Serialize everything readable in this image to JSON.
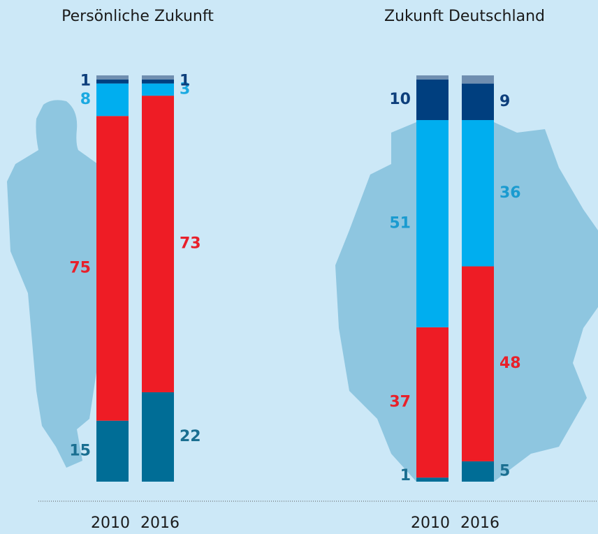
{
  "chart_data": [
    {
      "type": "stacked-bar",
      "title": "Persönliche Zukunft",
      "categories": [
        "2010",
        "2016"
      ],
      "ylim": [
        0,
        100
      ],
      "series": [
        {
          "color": "#006d96",
          "label_color": "#1a6f91",
          "values": [
            15,
            22
          ]
        },
        {
          "color": "#ee1c25",
          "label_color": "#e8202a",
          "values": [
            75,
            73
          ]
        },
        {
          "color": "#00aeef",
          "label_color": "#1aa9e1",
          "values": [
            8,
            3
          ]
        },
        {
          "color": "#003f7f",
          "label_color": "#0d3f7c",
          "values": [
            1,
            1
          ]
        },
        {
          "color": "#6f8eb0",
          "show_labels": false,
          "values": [
            1,
            1
          ]
        }
      ]
    },
    {
      "type": "stacked-bar",
      "title": "Zukunft Deutschland",
      "categories": [
        "2010",
        "2016"
      ],
      "ylim": [
        0,
        100
      ],
      "series": [
        {
          "color": "#006d96",
          "label_color": "#1a6f91",
          "values": [
            1,
            5
          ]
        },
        {
          "color": "#ee1c25",
          "label_color": "#e8202a",
          "values": [
            37,
            48
          ]
        },
        {
          "color": "#00aeef",
          "label_color": "#1a9bd0",
          "values": [
            51,
            36
          ]
        },
        {
          "color": "#003f7f",
          "label_color": "#0d3f7c",
          "values": [
            10,
            9
          ]
        },
        {
          "color": "#6f8eb0",
          "show_labels": false,
          "values": [
            1,
            2
          ]
        }
      ]
    }
  ]
}
